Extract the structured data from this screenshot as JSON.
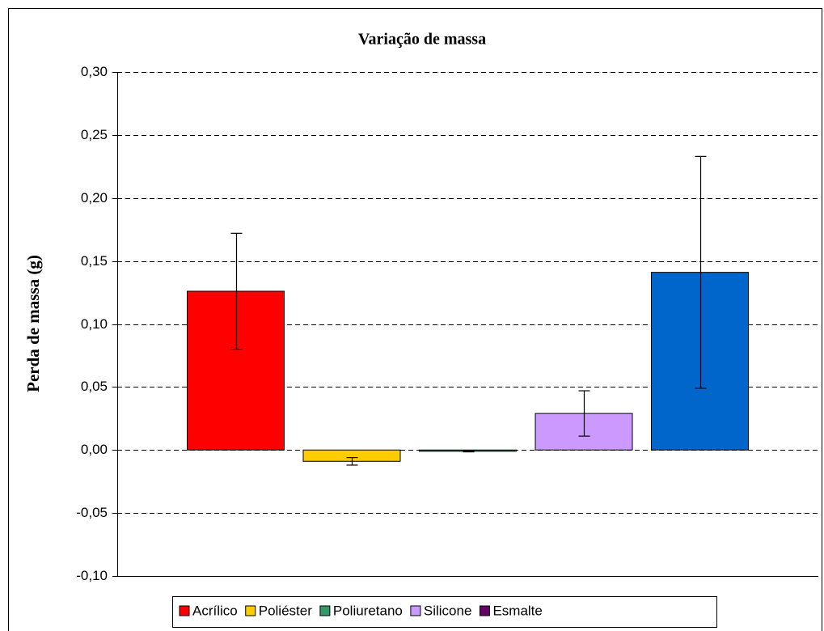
{
  "chart_data": {
    "type": "bar",
    "title": "Variação de massa",
    "ylabel": "Perda de massa (g)",
    "ylim": [
      -0.1,
      0.3
    ],
    "yticks": [
      {
        "value": -0.1,
        "label": "-0,10"
      },
      {
        "value": -0.05,
        "label": "-0,05"
      },
      {
        "value": 0,
        "label": "0,00"
      },
      {
        "value": 0.05,
        "label": "0,05"
      },
      {
        "value": 0.1,
        "label": "0,10"
      },
      {
        "value": 0.15,
        "label": "0,15"
      },
      {
        "value": 0.2,
        "label": "0,20"
      },
      {
        "value": 0.25,
        "label": "0,25"
      },
      {
        "value": 0.3,
        "label": "0,30"
      }
    ],
    "grid": true,
    "legend": "bottom",
    "series": [
      {
        "name": "Acrílico",
        "color": "#ff0000",
        "legend_color": "#ff0000",
        "values": [
          0.126
        ],
        "errors": [
          0.046
        ]
      },
      {
        "name": "Poliéster",
        "color": "#ffcc00",
        "legend_color": "#ffcc00",
        "values": [
          -0.009
        ],
        "errors": [
          0.003
        ]
      },
      {
        "name": "Poliuretano",
        "color": "#339966",
        "legend_color": "#339966",
        "values": [
          -0.001
        ],
        "errors": [
          0.0005
        ]
      },
      {
        "name": "Silicone",
        "color": "#cc99ff",
        "legend_color": "#cc99ff",
        "values": [
          0.029
        ],
        "errors": [
          0.018
        ]
      },
      {
        "name": "Esmalte",
        "color": "#0066cc",
        "legend_color": "#660066",
        "values": [
          0.141
        ],
        "errors": [
          0.092
        ]
      }
    ]
  }
}
